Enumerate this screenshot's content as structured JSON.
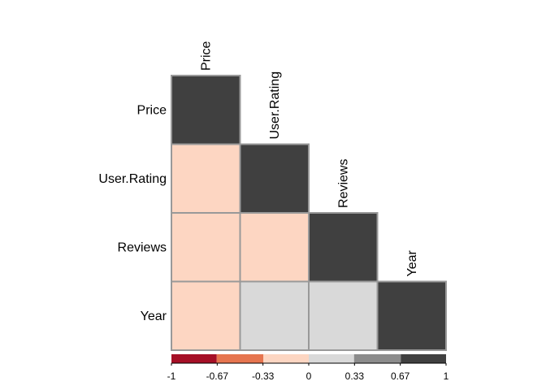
{
  "chart_data": {
    "type": "heatmap",
    "variables": [
      "Price",
      "User.Rating",
      "Reviews",
      "Year"
    ],
    "layout": "lower-triangle",
    "cells": [
      {
        "row": "Price",
        "col": "Price",
        "value": 1
      },
      {
        "row": "User.Rating",
        "col": "Price",
        "value": -0.1
      },
      {
        "row": "User.Rating",
        "col": "User.Rating",
        "value": 1
      },
      {
        "row": "Reviews",
        "col": "Price",
        "value": -0.1
      },
      {
        "row": "Reviews",
        "col": "User.Rating",
        "value": -0.1
      },
      {
        "row": "Reviews",
        "col": "Reviews",
        "value": 1
      },
      {
        "row": "Year",
        "col": "Price",
        "value": -0.1
      },
      {
        "row": "Year",
        "col": "User.Rating",
        "value": 0.2
      },
      {
        "row": "Year",
        "col": "Reviews",
        "value": 0.2
      },
      {
        "row": "Year",
        "col": "Year",
        "value": 1
      }
    ],
    "colorbar": {
      "range": [
        -1,
        1
      ],
      "tick_labels": [
        "-1",
        "-0.67",
        "-0.33",
        "0",
        "0.33",
        "0.67",
        "1"
      ],
      "bins": [
        {
          "from": -1,
          "to": -0.67,
          "color": "#A50F26"
        },
        {
          "from": -0.67,
          "to": -0.33,
          "color": "#E6754F"
        },
        {
          "from": -0.33,
          "to": 0,
          "color": "#FDD6C2"
        },
        {
          "from": 0,
          "to": 0.33,
          "color": "#D9D9D9"
        },
        {
          "from": 0.33,
          "to": 0.67,
          "color": "#8C8C8C"
        },
        {
          "from": 0.67,
          "to": 1,
          "color": "#404040"
        }
      ],
      "placement": "bottom"
    },
    "cell_border_color": "#999999",
    "title": "",
    "xlabel": "",
    "ylabel": ""
  }
}
